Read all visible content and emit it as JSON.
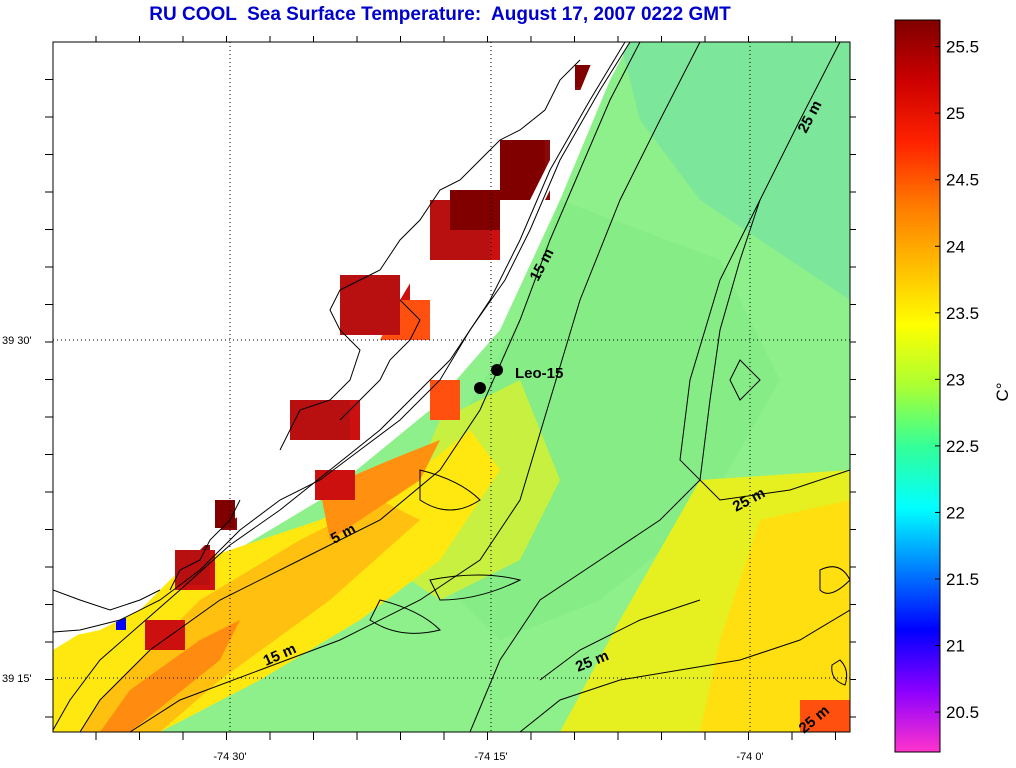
{
  "title": "RU COOL  Sea Surface Temperature:  August 17, 2007 0222 GMT",
  "x_ticks": [
    "-74 30'",
    "-74 15'",
    "-74 0'"
  ],
  "y_ticks": [
    "39 30'",
    "39 15'"
  ],
  "colorbar": {
    "unit_label": "C°",
    "ticks": [
      "25.5",
      "25",
      "24.5",
      "24",
      "23.5",
      "23",
      "22.5",
      "22",
      "21.5",
      "21",
      "20.5"
    ],
    "range": [
      20.2,
      25.7
    ],
    "colors": [
      "#ff33cc",
      "#8b00ff",
      "#0000ff",
      "#0080ff",
      "#00ffff",
      "#33ff99",
      "#aaff33",
      "#ffff00",
      "#ffbb00",
      "#ff7700",
      "#ff2200",
      "#cc0000",
      "#800000"
    ]
  },
  "contour_labels": [
    "5 m",
    "15 m",
    "15 m",
    "25 m",
    "25 m",
    "25 m",
    "25 m"
  ],
  "station": {
    "label": "Leo-15"
  }
}
